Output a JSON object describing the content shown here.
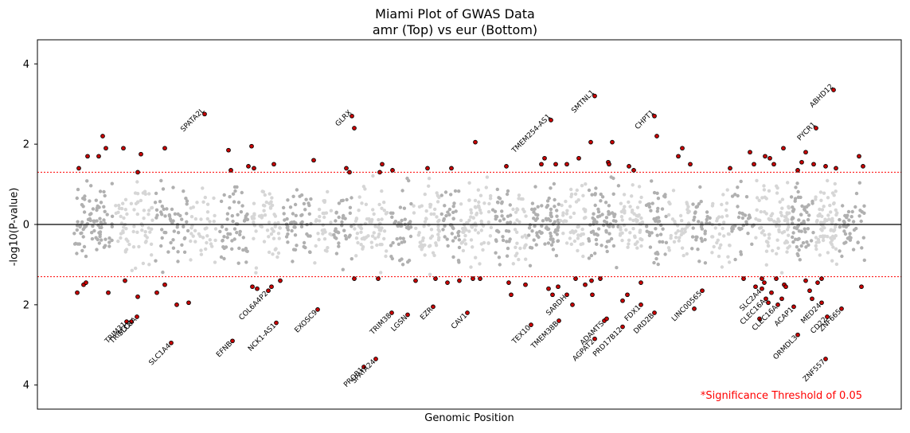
{
  "chart_data": {
    "type": "scatter",
    "title": "Miami Plot of GWAS Data",
    "subtitle": "amr (Top) vs eur (Bottom)",
    "xlabel": "Genomic Position",
    "ylabel": "-log10(P-value)",
    "ylim": [
      -4.6,
      4.6
    ],
    "y_ticks": [
      {
        "value": 4,
        "label": "4"
      },
      {
        "value": 2,
        "label": "2"
      },
      {
        "value": 0,
        "label": "0"
      },
      {
        "value": -2,
        "label": "2"
      },
      {
        "value": -4,
        "label": "4"
      }
    ],
    "threshold": 1.3,
    "threshold_color": "#ff0000",
    "significance_note": "*Significance Threshold of 0.05",
    "colors": {
      "background_a": "#b0b0b0",
      "background_b": "#d6d6d6",
      "significant_fill": "#cc0000",
      "significant_edge": "#000000",
      "zero_line": "#000000"
    },
    "top_labels": [
      {
        "x": 210,
        "y": 2.75,
        "label": "SPATA2L"
      },
      {
        "x": 395,
        "y": 2.7,
        "label": "GLRX"
      },
      {
        "x": 645,
        "y": 2.6,
        "label": "TMEM254-AS1"
      },
      {
        "x": 700,
        "y": 3.2,
        "label": "SMTNL1"
      },
      {
        "x": 775,
        "y": 2.7,
        "label": "CHPT1"
      },
      {
        "x": 978,
        "y": 2.4,
        "label": "PYCR1"
      },
      {
        "x": 1000,
        "y": 3.35,
        "label": "ABHD12"
      }
    ],
    "bottom_labels": [
      {
        "x": 112,
        "y": -2.42,
        "label": "TRIM31"
      },
      {
        "x": 118,
        "y": -2.42,
        "label": "TRIM31"
      },
      {
        "x": 125,
        "y": -2.3,
        "label": "SLC8A"
      },
      {
        "x": 168,
        "y": -2.95,
        "label": "SLC1A4"
      },
      {
        "x": 245,
        "y": -2.9,
        "label": "EFNB"
      },
      {
        "x": 290,
        "y": -1.65,
        "label": "COL6A4P2"
      },
      {
        "x": 300,
        "y": -2.45,
        "label": "NCK1-AS1"
      },
      {
        "x": 352,
        "y": -2.12,
        "label": "EXOSC9"
      },
      {
        "x": 410,
        "y": -3.55,
        "label": "PROB1"
      },
      {
        "x": 425,
        "y": -3.35,
        "label": "SPATA24"
      },
      {
        "x": 445,
        "y": -2.2,
        "label": "TRIM38"
      },
      {
        "x": 465,
        "y": -2.25,
        "label": "LGSN"
      },
      {
        "x": 497,
        "y": -2.05,
        "label": "EZR"
      },
      {
        "x": 540,
        "y": -2.2,
        "label": "CAV1"
      },
      {
        "x": 620,
        "y": -2.5,
        "label": "TEX10"
      },
      {
        "x": 655,
        "y": -2.4,
        "label": "TMEM38B"
      },
      {
        "x": 665,
        "y": -1.75,
        "label": "SARDH"
      },
      {
        "x": 700,
        "y": -2.85,
        "label": "AGPAT2"
      },
      {
        "x": 712,
        "y": -2.4,
        "label": "ADAMTS"
      },
      {
        "x": 735,
        "y": -2.55,
        "label": "PRD17B12"
      },
      {
        "x": 758,
        "y": -2.0,
        "label": "FDX1"
      },
      {
        "x": 775,
        "y": -2.2,
        "label": "DRD2B"
      },
      {
        "x": 835,
        "y": -1.65,
        "label": "LINC00565"
      },
      {
        "x": 910,
        "y": -1.6,
        "label": "SLC2A4"
      },
      {
        "x": 915,
        "y": -1.85,
        "label": "CLEC16A"
      },
      {
        "x": 930,
        "y": -2.0,
        "label": "CLEC16A"
      },
      {
        "x": 950,
        "y": -2.05,
        "label": "ACAP1"
      },
      {
        "x": 955,
        "y": -2.75,
        "label": "ORMDL3"
      },
      {
        "x": 985,
        "y": -1.95,
        "label": "MED24"
      },
      {
        "x": 992,
        "y": -2.3,
        "label": "CD22"
      },
      {
        "x": 1010,
        "y": -2.1,
        "label": "ZNF665"
      },
      {
        "x": 990,
        "y": -3.35,
        "label": "ZNF557"
      }
    ],
    "legend": "none",
    "grid": false
  }
}
